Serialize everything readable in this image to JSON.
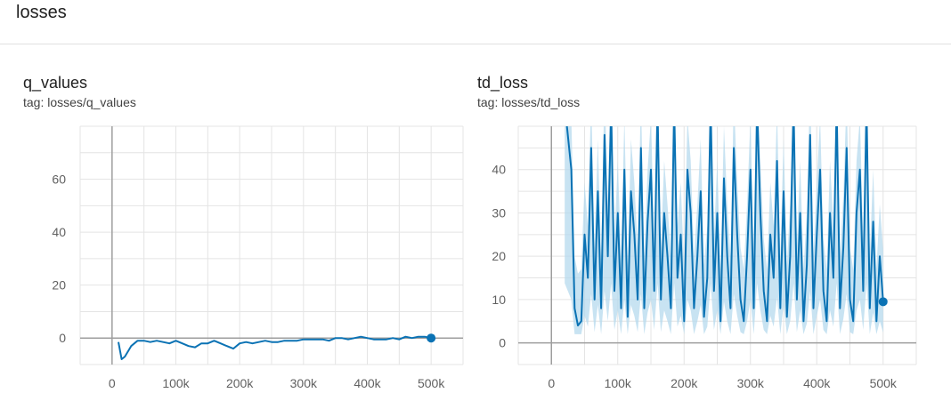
{
  "header": {
    "title": "losses"
  },
  "cards": [
    {
      "title": "q_values",
      "tag": "tag: losses/q_values"
    },
    {
      "title": "td_loss",
      "tag": "tag: losses/td_loss"
    }
  ],
  "colors": {
    "line": "#0a72b4",
    "band": "#b6d9ee",
    "grid": "#e4e4e4",
    "axis": "#9e9e9e"
  },
  "chart_data": [
    {
      "type": "line",
      "title": "",
      "xlabel": "",
      "ylabel": "",
      "xlim": [
        -50000,
        550000
      ],
      "ylim": [
        -10,
        80
      ],
      "x_ticks": [
        0,
        100000,
        200000,
        300000,
        400000,
        500000
      ],
      "x_tick_labels": [
        "0",
        "100k",
        "200k",
        "300k",
        "400k",
        "500k"
      ],
      "y_ticks": [
        0,
        20,
        40,
        60
      ],
      "y_tick_labels": [
        "0",
        "20",
        "40",
        "60"
      ],
      "grid": true,
      "series": [
        {
          "x": [
            10000,
            15000,
            20000,
            25000,
            30000,
            40000,
            50000,
            60000,
            70000,
            80000,
            90000,
            100000,
            110000,
            120000,
            130000,
            140000,
            150000,
            160000,
            170000,
            180000,
            190000,
            200000,
            210000,
            220000,
            230000,
            240000,
            250000,
            260000,
            270000,
            280000,
            290000,
            300000,
            310000,
            320000,
            330000,
            340000,
            350000,
            360000,
            370000,
            380000,
            390000,
            400000,
            410000,
            420000,
            430000,
            440000,
            450000,
            460000,
            470000,
            480000,
            490000,
            500000
          ],
          "y": [
            -1.5,
            -8,
            -7,
            -5,
            -3,
            -1,
            -1,
            -1.5,
            -1,
            -1.5,
            -2,
            -1,
            -2,
            -3,
            -3.5,
            -2,
            -2,
            -1,
            -2,
            -3,
            -4,
            -2,
            -1.5,
            -2,
            -1.5,
            -1,
            -1.5,
            -1.5,
            -1,
            -1,
            -1,
            -0.5,
            -0.5,
            -0.5,
            -0.5,
            -1,
            0,
            0,
            -0.5,
            0,
            0.5,
            0,
            -0.5,
            -0.5,
            -0.5,
            0,
            -0.5,
            0.5,
            0,
            0.5,
            0.5,
            0
          ]
        }
      ]
    },
    {
      "type": "line",
      "title": "",
      "xlabel": "",
      "ylabel": "",
      "xlim": [
        -50000,
        550000
      ],
      "ylim": [
        -5,
        50
      ],
      "x_ticks": [
        0,
        100000,
        200000,
        300000,
        400000,
        500000
      ],
      "x_tick_labels": [
        "0",
        "100k",
        "200k",
        "300k",
        "400k",
        "500k"
      ],
      "y_ticks": [
        0,
        10,
        20,
        30,
        40
      ],
      "y_tick_labels": [
        "0",
        "10",
        "20",
        "30",
        "40"
      ],
      "grid": true,
      "series": [
        {
          "x": [
            20000,
            30000,
            35000,
            40000,
            45000,
            50000,
            55000,
            60000,
            65000,
            70000,
            75000,
            80000,
            85000,
            90000,
            95000,
            100000,
            105000,
            110000,
            115000,
            120000,
            125000,
            130000,
            135000,
            140000,
            145000,
            150000,
            155000,
            160000,
            165000,
            170000,
            175000,
            180000,
            185000,
            190000,
            195000,
            200000,
            205000,
            210000,
            215000,
            220000,
            225000,
            230000,
            235000,
            240000,
            245000,
            250000,
            255000,
            260000,
            265000,
            270000,
            275000,
            280000,
            285000,
            290000,
            295000,
            300000,
            305000,
            310000,
            315000,
            320000,
            325000,
            330000,
            335000,
            340000,
            345000,
            350000,
            355000,
            360000,
            365000,
            370000,
            375000,
            380000,
            385000,
            390000,
            395000,
            400000,
            405000,
            410000,
            415000,
            420000,
            425000,
            430000,
            435000,
            440000,
            445000,
            450000,
            455000,
            460000,
            465000,
            470000,
            475000,
            480000,
            485000,
            490000,
            495000,
            500000
          ],
          "y": [
            55,
            40,
            8,
            4,
            5,
            25,
            15,
            45,
            10,
            35,
            8,
            48,
            20,
            55,
            12,
            30,
            8,
            40,
            6,
            35,
            25,
            10,
            45,
            8,
            28,
            40,
            12,
            55,
            10,
            30,
            20,
            8,
            55,
            15,
            25,
            5,
            40,
            30,
            8,
            20,
            35,
            6,
            15,
            55,
            12,
            30,
            5,
            38,
            20,
            8,
            45,
            25,
            10,
            5,
            20,
            40,
            8,
            55,
            30,
            12,
            5,
            25,
            15,
            42,
            8,
            35,
            6,
            20,
            55,
            10,
            30,
            5,
            18,
            48,
            8,
            25,
            40,
            12,
            5,
            30,
            15,
            55,
            8,
            22,
            45,
            10,
            5,
            30,
            40,
            12,
            55,
            8,
            28,
            5,
            20,
            9.5
          ]
        }
      ]
    }
  ]
}
